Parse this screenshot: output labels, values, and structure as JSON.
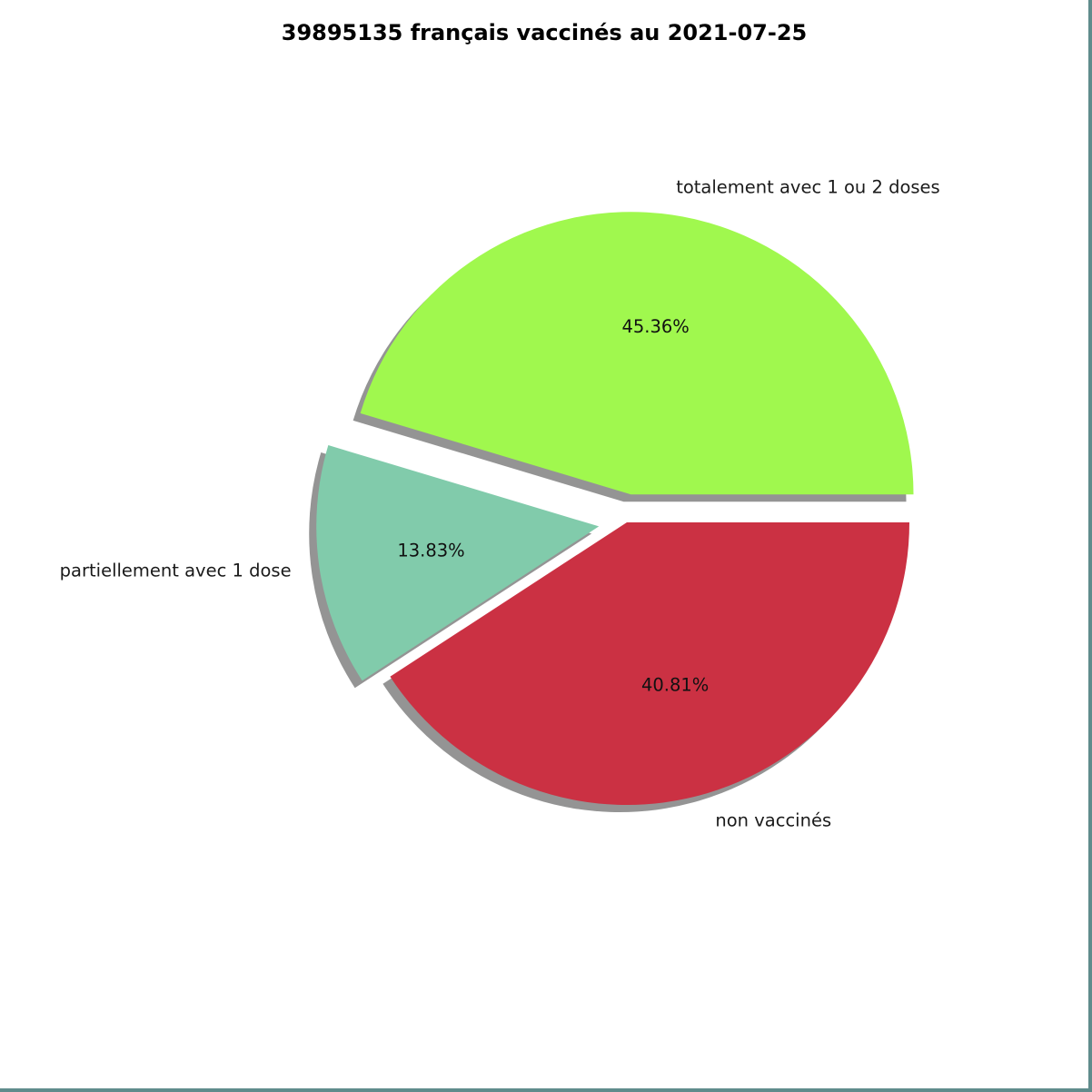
{
  "chart_data": {
    "type": "pie",
    "title": "39895135 français vaccinés au 2021-07-25",
    "slices": [
      {
        "label": "totalement avec 1 ou 2 doses",
        "value": 45.36,
        "pct_label": "45.36%",
        "color": "#a0f84e",
        "exploded": true
      },
      {
        "label": "partiellement avec 1 dose",
        "value": 13.83,
        "pct_label": "13.83%",
        "color": "#81cbab",
        "exploded": true
      },
      {
        "label": "non vaccinés",
        "value": 40.81,
        "pct_label": "40.81%",
        "color": "#cb3143",
        "exploded": false
      }
    ],
    "shadow": true,
    "start_angle_deg": 0,
    "direction": "counterclockwise"
  }
}
